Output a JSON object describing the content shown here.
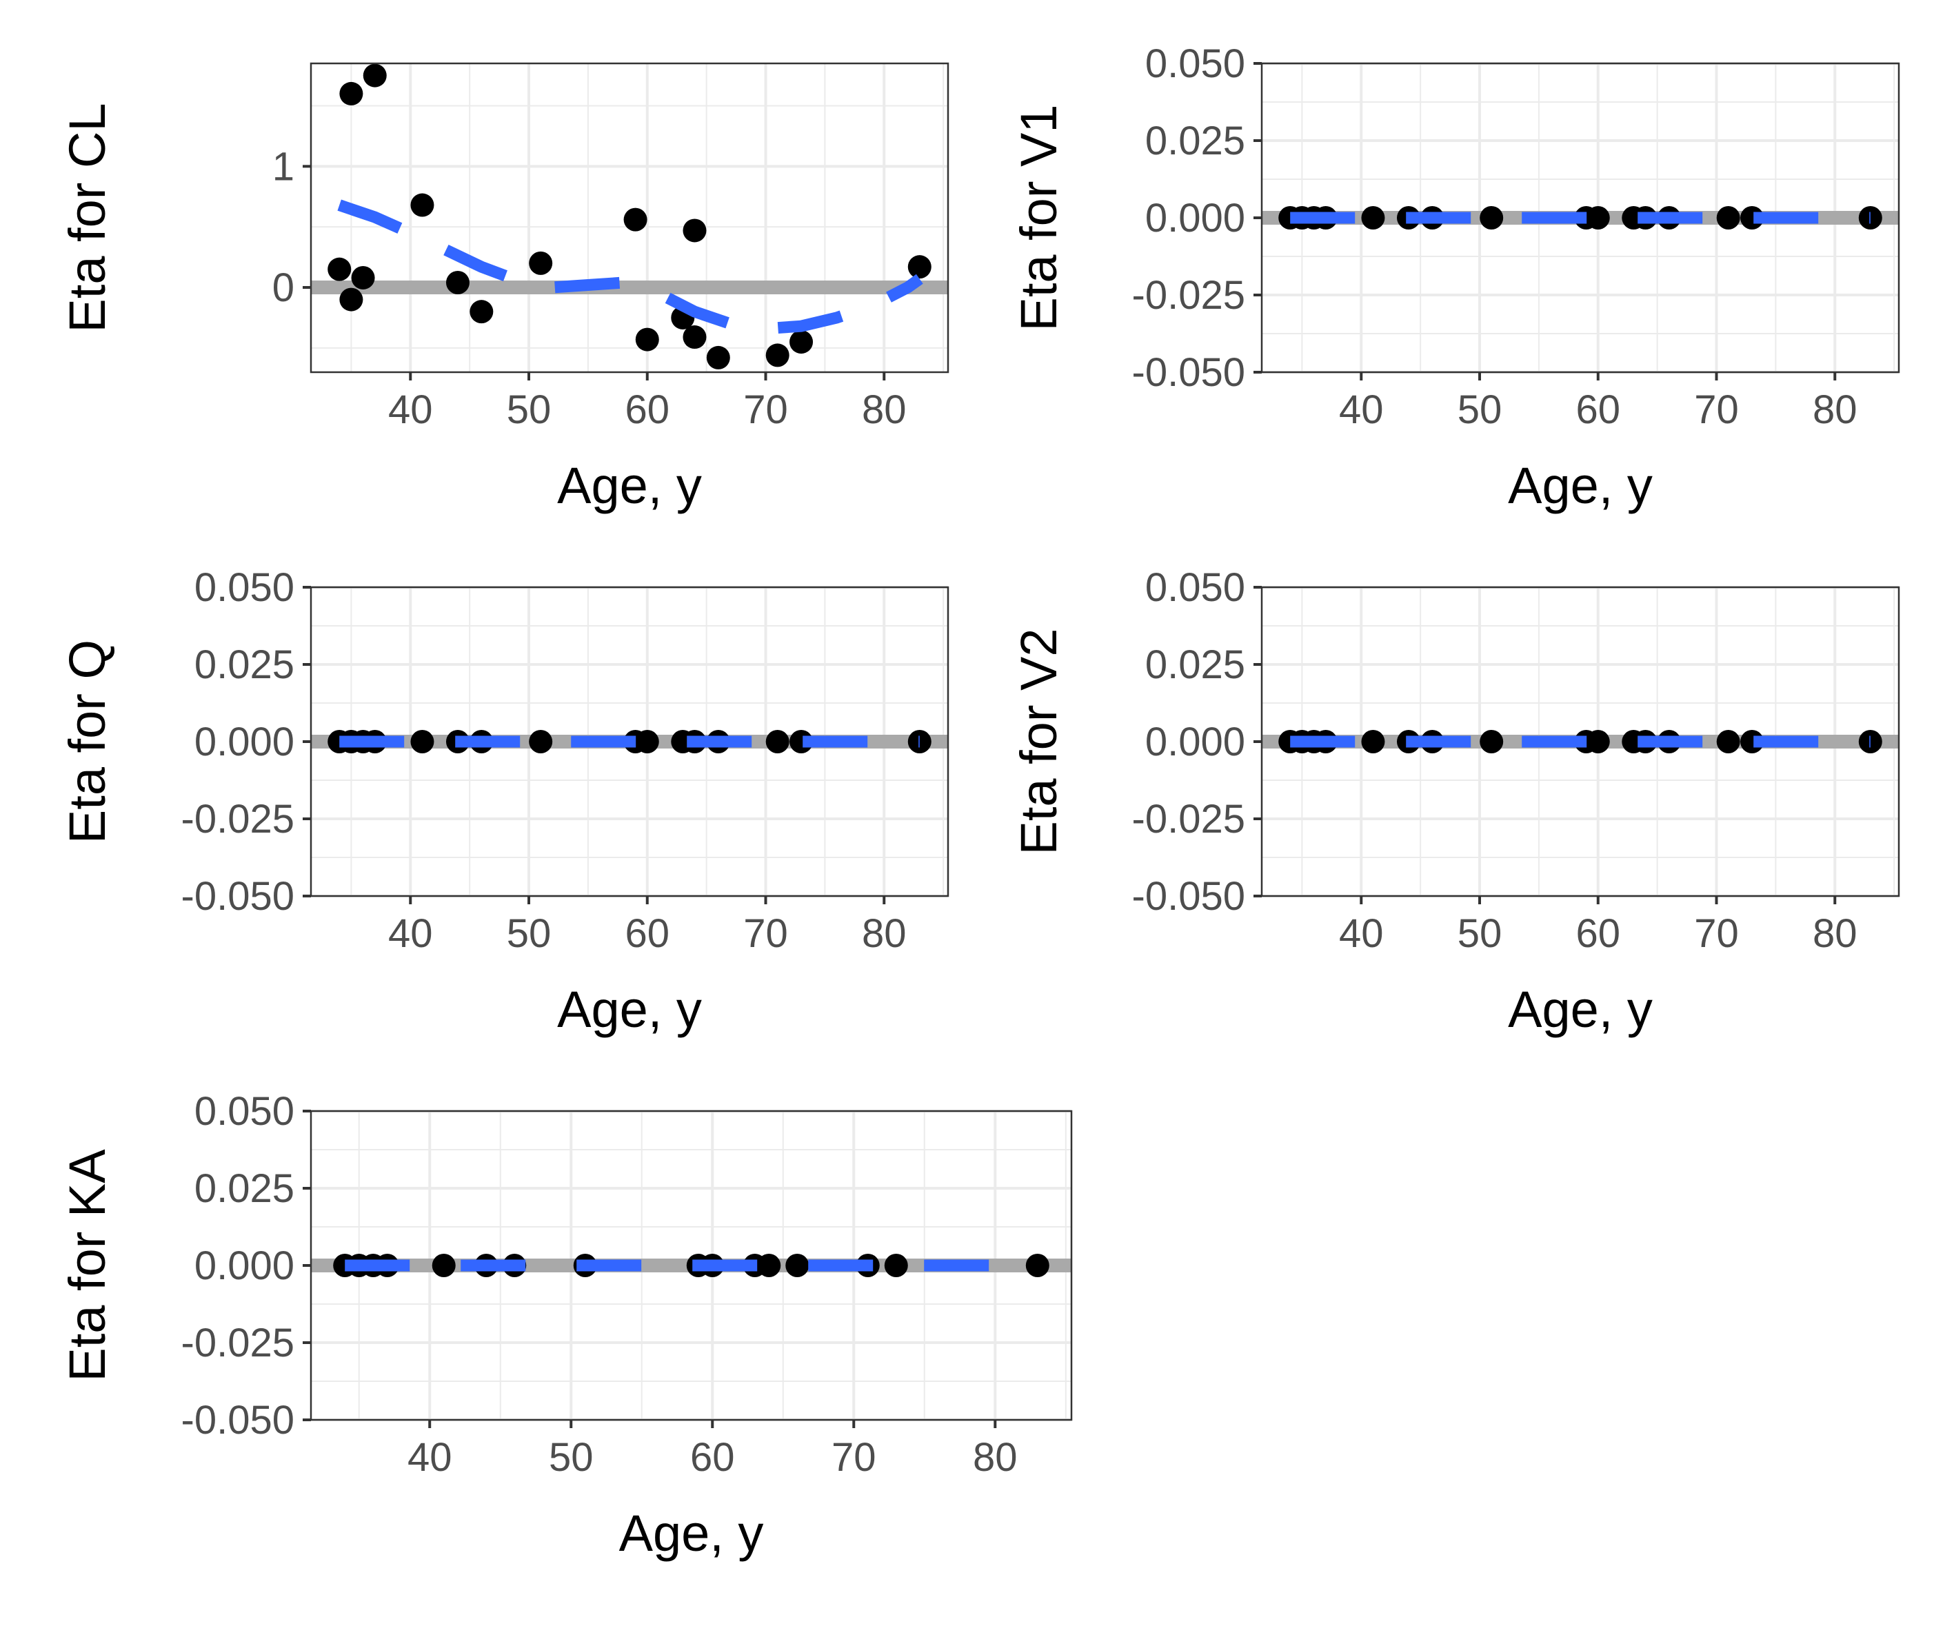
{
  "style": {
    "point_color": "#000000",
    "smooth_color": "#3366FF",
    "zero_line_color": "#A9A9A9",
    "grid_color": "#EBEBEB",
    "tick_label_color": "#4D4D4D"
  },
  "chart_data": [
    {
      "id": "cl",
      "type": "scatter",
      "xlabel": "Age, y",
      "ylabel": "Eta for CL",
      "xlim": [
        31.6,
        85.4
      ],
      "ylim": [
        -0.7,
        1.85
      ],
      "x_ticks": [
        40,
        50,
        60,
        70,
        80
      ],
      "x_tick_labels": [
        "40",
        "50",
        "60",
        "70",
        "80"
      ],
      "y_ticks": [
        0,
        1
      ],
      "y_tick_labels": [
        "0",
        "1"
      ],
      "points": [
        {
          "x": 34,
          "y": 0.15
        },
        {
          "x": 35,
          "y": -0.1
        },
        {
          "x": 35,
          "y": 1.6
        },
        {
          "x": 36,
          "y": 0.08
        },
        {
          "x": 37,
          "y": 1.75
        },
        {
          "x": 41,
          "y": 0.68
        },
        {
          "x": 44,
          "y": 0.04
        },
        {
          "x": 46,
          "y": -0.2
        },
        {
          "x": 51,
          "y": 0.2
        },
        {
          "x": 59,
          "y": 0.56
        },
        {
          "x": 60,
          "y": -0.43
        },
        {
          "x": 63,
          "y": -0.25
        },
        {
          "x": 64,
          "y": 0.47
        },
        {
          "x": 64,
          "y": -0.41
        },
        {
          "x": 66,
          "y": -0.58
        },
        {
          "x": 71,
          "y": -0.56
        },
        {
          "x": 73,
          "y": -0.45
        },
        {
          "x": 83,
          "y": 0.17
        }
      ],
      "smooth": {
        "x": [
          34,
          37,
          40,
          43,
          46,
          49,
          52,
          55,
          58,
          61,
          64,
          67,
          70,
          73,
          76,
          79,
          82,
          83
        ],
        "y": [
          0.68,
          0.58,
          0.45,
          0.31,
          0.17,
          0.06,
          0.0,
          0.02,
          0.04,
          -0.05,
          -0.2,
          -0.3,
          -0.34,
          -0.32,
          -0.25,
          -0.15,
          0.0,
          0.07
        ]
      }
    },
    {
      "id": "v1",
      "type": "scatter",
      "xlabel": "Age, y",
      "ylabel": "Eta for V1",
      "xlim": [
        31.6,
        85.4
      ],
      "ylim": [
        -0.05,
        0.05
      ],
      "x_ticks": [
        40,
        50,
        60,
        70,
        80
      ],
      "x_tick_labels": [
        "40",
        "50",
        "60",
        "70",
        "80"
      ],
      "y_ticks": [
        -0.05,
        -0.025,
        0,
        0.025,
        0.05
      ],
      "y_tick_labels": [
        "-0.050",
        "-0.025",
        "0.000",
        "0.025",
        "0.050"
      ],
      "points": [
        {
          "x": 34,
          "y": 0
        },
        {
          "x": 35,
          "y": 0
        },
        {
          "x": 36,
          "y": 0
        },
        {
          "x": 37,
          "y": 0
        },
        {
          "x": 41,
          "y": 0
        },
        {
          "x": 44,
          "y": 0
        },
        {
          "x": 46,
          "y": 0
        },
        {
          "x": 51,
          "y": 0
        },
        {
          "x": 59,
          "y": 0
        },
        {
          "x": 60,
          "y": 0
        },
        {
          "x": 63,
          "y": 0
        },
        {
          "x": 64,
          "y": 0
        },
        {
          "x": 66,
          "y": 0
        },
        {
          "x": 71,
          "y": 0
        },
        {
          "x": 73,
          "y": 0
        },
        {
          "x": 83,
          "y": 0
        }
      ],
      "smooth": {
        "x": [
          34,
          83
        ],
        "y": [
          0,
          0
        ]
      }
    },
    {
      "id": "q",
      "type": "scatter",
      "xlabel": "Age, y",
      "ylabel": "Eta for Q",
      "xlim": [
        31.6,
        85.4
      ],
      "ylim": [
        -0.05,
        0.05
      ],
      "x_ticks": [
        40,
        50,
        60,
        70,
        80
      ],
      "x_tick_labels": [
        "40",
        "50",
        "60",
        "70",
        "80"
      ],
      "y_ticks": [
        -0.05,
        -0.025,
        0,
        0.025,
        0.05
      ],
      "y_tick_labels": [
        "-0.050",
        "-0.025",
        "0.000",
        "0.025",
        "0.050"
      ],
      "points": [
        {
          "x": 34,
          "y": 0
        },
        {
          "x": 35,
          "y": 0
        },
        {
          "x": 36,
          "y": 0
        },
        {
          "x": 37,
          "y": 0
        },
        {
          "x": 41,
          "y": 0
        },
        {
          "x": 44,
          "y": 0
        },
        {
          "x": 46,
          "y": 0
        },
        {
          "x": 51,
          "y": 0
        },
        {
          "x": 59,
          "y": 0
        },
        {
          "x": 60,
          "y": 0
        },
        {
          "x": 63,
          "y": 0
        },
        {
          "x": 64,
          "y": 0
        },
        {
          "x": 66,
          "y": 0
        },
        {
          "x": 71,
          "y": 0
        },
        {
          "x": 73,
          "y": 0
        },
        {
          "x": 83,
          "y": 0
        }
      ],
      "smooth": {
        "x": [
          34,
          83
        ],
        "y": [
          0,
          0
        ]
      }
    },
    {
      "id": "v2",
      "type": "scatter",
      "xlabel": "Age, y",
      "ylabel": "Eta for V2",
      "xlim": [
        31.6,
        85.4
      ],
      "ylim": [
        -0.05,
        0.05
      ],
      "x_ticks": [
        40,
        50,
        60,
        70,
        80
      ],
      "x_tick_labels": [
        "40",
        "50",
        "60",
        "70",
        "80"
      ],
      "y_ticks": [
        -0.05,
        -0.025,
        0,
        0.025,
        0.05
      ],
      "y_tick_labels": [
        "-0.050",
        "-0.025",
        "0.000",
        "0.025",
        "0.050"
      ],
      "points": [
        {
          "x": 34,
          "y": 0
        },
        {
          "x": 35,
          "y": 0
        },
        {
          "x": 36,
          "y": 0
        },
        {
          "x": 37,
          "y": 0
        },
        {
          "x": 41,
          "y": 0
        },
        {
          "x": 44,
          "y": 0
        },
        {
          "x": 46,
          "y": 0
        },
        {
          "x": 51,
          "y": 0
        },
        {
          "x": 59,
          "y": 0
        },
        {
          "x": 60,
          "y": 0
        },
        {
          "x": 63,
          "y": 0
        },
        {
          "x": 64,
          "y": 0
        },
        {
          "x": 66,
          "y": 0
        },
        {
          "x": 71,
          "y": 0
        },
        {
          "x": 73,
          "y": 0
        },
        {
          "x": 83,
          "y": 0
        }
      ],
      "smooth": {
        "x": [
          34,
          83
        ],
        "y": [
          0,
          0
        ]
      }
    },
    {
      "id": "ka",
      "type": "scatter",
      "xlabel": "Age, y",
      "ylabel": "Eta for KA",
      "xlim": [
        31.6,
        85.4
      ],
      "ylim": [
        -0.05,
        0.05
      ],
      "x_ticks": [
        40,
        50,
        60,
        70,
        80
      ],
      "x_tick_labels": [
        "40",
        "50",
        "60",
        "70",
        "80"
      ],
      "y_ticks": [
        -0.05,
        -0.025,
        0,
        0.025,
        0.05
      ],
      "y_tick_labels": [
        "-0.050",
        "-0.025",
        "0.000",
        "0.025",
        "0.050"
      ],
      "points": [
        {
          "x": 34,
          "y": 0
        },
        {
          "x": 35,
          "y": 0
        },
        {
          "x": 36,
          "y": 0
        },
        {
          "x": 37,
          "y": 0
        },
        {
          "x": 41,
          "y": 0
        },
        {
          "x": 44,
          "y": 0
        },
        {
          "x": 46,
          "y": 0
        },
        {
          "x": 51,
          "y": 0
        },
        {
          "x": 59,
          "y": 0
        },
        {
          "x": 60,
          "y": 0
        },
        {
          "x": 63,
          "y": 0
        },
        {
          "x": 64,
          "y": 0
        },
        {
          "x": 66,
          "y": 0
        },
        {
          "x": 71,
          "y": 0
        },
        {
          "x": 73,
          "y": 0
        },
        {
          "x": 83,
          "y": 0
        }
      ],
      "smooth": {
        "x": [
          34,
          83
        ],
        "y": [
          0,
          0
        ]
      }
    }
  ]
}
